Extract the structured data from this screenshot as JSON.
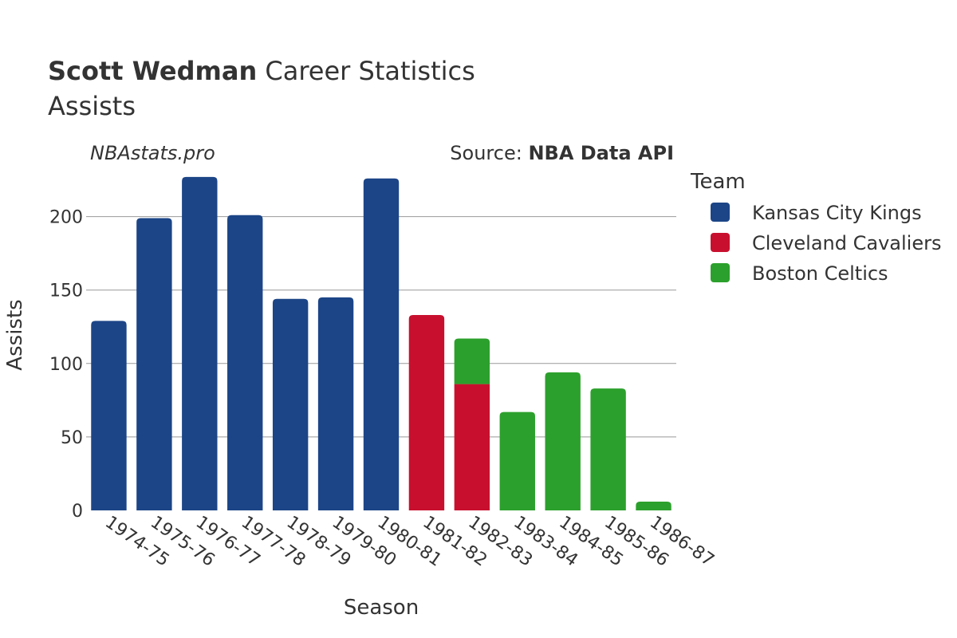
{
  "header": {
    "player_name": "Scott Wedman",
    "title_rest": " Career Statistics",
    "subtitle": "Assists",
    "watermark": "NBAstats.pro",
    "source_prefix": "Source: ",
    "source_name": "NBA Data API"
  },
  "legend": {
    "title": "Team"
  },
  "colors": {
    "Kansas City Kings": "#1c4587",
    "Cleveland Cavaliers": "#c8102e",
    "Boston Celtics": "#2ca02c"
  },
  "chart_data": {
    "type": "bar",
    "stacked": true,
    "title": "Scott Wedman Career Statistics",
    "subtitle": "Assists",
    "xlabel": "Season",
    "ylabel": "Assists",
    "ylim": [
      0,
      230
    ],
    "yticks": [
      0,
      50,
      100,
      150,
      200
    ],
    "grid": true,
    "legend_position": "right",
    "categories": [
      "1974-75",
      "1975-76",
      "1976-77",
      "1977-78",
      "1978-79",
      "1979-80",
      "1980-81",
      "1981-82",
      "1982-83",
      "1983-84",
      "1984-85",
      "1985-86",
      "1986-87"
    ],
    "series": [
      {
        "name": "Kansas City Kings",
        "values": [
          129,
          199,
          227,
          201,
          144,
          145,
          226,
          0,
          0,
          0,
          0,
          0,
          0
        ]
      },
      {
        "name": "Cleveland Cavaliers",
        "values": [
          0,
          0,
          0,
          0,
          0,
          0,
          0,
          133,
          86,
          0,
          0,
          0,
          0
        ]
      },
      {
        "name": "Boston Celtics",
        "values": [
          0,
          0,
          0,
          0,
          0,
          0,
          0,
          0,
          31,
          67,
          94,
          83,
          6
        ]
      }
    ]
  }
}
